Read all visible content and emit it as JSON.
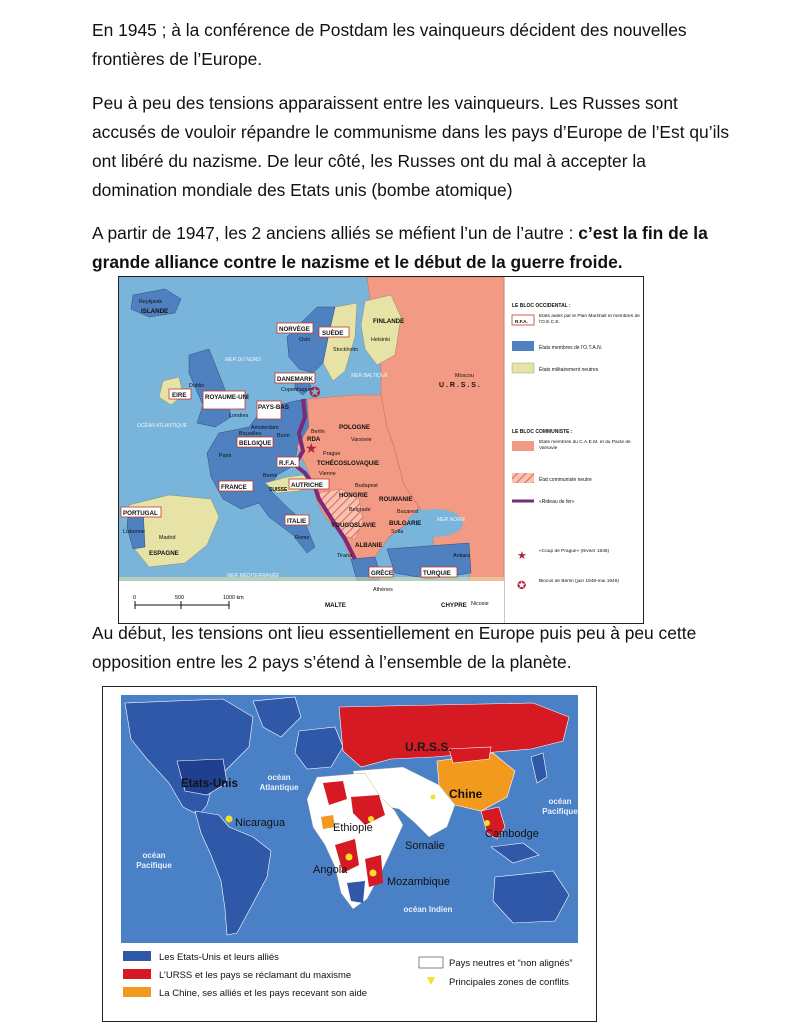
{
  "intro": {
    "p1": "En 1945 ; à la conférence de Postdam les vainqueurs décident des nouvelles frontières de l’Europe.",
    "p2": "Peu à peu des tensions apparaissent entre les vainqueurs. Les Russes sont accusés de vouloir répandre le communisme dans les pays d’Europe de l’Est qu’ils ont libéré du nazisme. De leur côté, les Russes ont du mal à accepter la domination mondiale des Etats unis (bombe atomique)",
    "p3_normal": "A partir de 1947, les 2 anciens alliés se méfient l’un de l’autre : ",
    "p3_bold": "c’est la fin de la grande alliance contre le nazisme et le début de la guerre froide.",
    "p4": "Au début, les tensions ont lieu essentiellement en Europe puis peu à peu cette opposition entre les 2 pays s’étend à l’ensemble de la planète."
  },
  "europe_map": {
    "countries": {
      "islande": "ISLANDE",
      "norvege": "NORVÈGE",
      "suede": "SUÈDE",
      "finlande": "FINLANDE",
      "danemark": "DANEMARK",
      "eire": "EIRE",
      "royaume_uni": "ROYAUME-UNI",
      "pays_bas": "PAYS-BAS",
      "belgique": "BELGIQUE",
      "rfa": "R.F.A.",
      "rda": "RDA",
      "pologne": "POLOGNE",
      "tchecoslovaquie": "TCHÉCOSLOVAQUIE",
      "autriche": "AUTRICHE",
      "suisse": "SUISSE",
      "hongrie": "HONGRIE",
      "roumanie": "ROUMANIE",
      "france": "FRANCE",
      "portugal": "PORTUGAL",
      "espagne": "ESPAGNE",
      "italie": "ITALIE",
      "yougoslavie": "YOUGOSLAVIE",
      "bulgarie": "BULGARIE",
      "albanie": "ALBANIE",
      "grece": "GRÈCE",
      "turquie": "TURQUIE",
      "urss": "U . R . S . S .",
      "chypre": "CHYPRE",
      "malte": "MALTE"
    },
    "cities": {
      "reykjavik": "Reykjavik",
      "oslo": "Oslo",
      "stockholm": "Stockholm",
      "helsinki": "Helsinki",
      "copenhague": "Copenhague",
      "dublin": "Dublin",
      "londres": "Londres",
      "amsterdam": "Amsterdam",
      "bruxelles": "Bruxelles",
      "bonn": "Bonn",
      "berlin": "Berlin",
      "varsovie": "Varsovie",
      "moscou": "Moscou",
      "prague": "Prague",
      "vienne": "Vienne",
      "budapest": "Budapest",
      "berne": "Berne",
      "paris": "Paris",
      "bucarest": "Bucarest",
      "belgrade": "Belgrade",
      "sofia": "Sofia",
      "tirana": "Tirana",
      "rome": "Rome",
      "madrid": "Madrid",
      "lisbonne": "Lisbonne",
      "athenes": "Athènes",
      "ankara": "Ankara",
      "nicosie": "Nicosie"
    },
    "seas": {
      "mer_du_nord": "MER DU NORD",
      "mer_baltique": "MER BALTIQUE",
      "ocean_atlantique": "OCÉAN ATLANTIQUE",
      "mer_noire": "MER NOIRE",
      "mer_mediterranee": "MER MÉDITERRANÉE"
    },
    "scale": {
      "s0": "0",
      "s500": "500",
      "s1000": "1000 km"
    },
    "legend": {
      "western_title": "LE BLOC OCCIDENTAL :",
      "rfa_box": "R.F.A.",
      "marshall": "États aidés par le Plan Marshall et membres de l’O.E.C.E.",
      "otan": "États membres de l’O.T.A.N.",
      "neutral": "États militairement neutres",
      "communist_title": "LE BLOC COMMUNISTE :",
      "caem": "États membres du C.A.E.M. et du Pacte de Varsovie",
      "neutral_communist": "État communiste neutre",
      "iron_curtain": "«Rideau de fer»",
      "prague": "«Coup de Prague» (février 1948)",
      "berlin": "Blocus de Berlin (juin 1948-mai 1949)"
    },
    "colors": {
      "sea": "#79b5da",
      "otan": "#4f80c0",
      "neutral": "#e7e2a6",
      "communist": "#f29a84",
      "curtain": "#7b2a78"
    }
  },
  "world_map": {
    "labels": {
      "usa": "Etats-Unis",
      "urss": "U.R.S.S.",
      "chine": "Chine",
      "nicaragua": "Nicaragua",
      "ethiopie": "Ethiopie",
      "somalie": "Somalie",
      "angola": "Angola",
      "mozambique": "Mozambique",
      "cambodge": "Cambodge",
      "atlantique": "océan Atlantique",
      "pacifique_est": "océan Pacifique",
      "pacifique_ouest": "océan Pacifique",
      "indien": "océan Indien"
    },
    "legend": {
      "usa_allies": "Les Etats-Unis et leurs alliés",
      "urss_allies": "L’URSS et les pays se réclamant du maxisme",
      "china_allies": "La Chine, ses alliés et les pays recevant son aide",
      "non_aligned": "Pays neutres et “non alignés”",
      "conflicts": "Principales zones de conflits"
    },
    "colors": {
      "ocean": "#4a80c6",
      "usa_bloc": "#3058a8",
      "soviet": "#d51a24",
      "china": "#f19a1e",
      "neutral": "#ffffff",
      "conflict": "#f5e02a"
    }
  }
}
